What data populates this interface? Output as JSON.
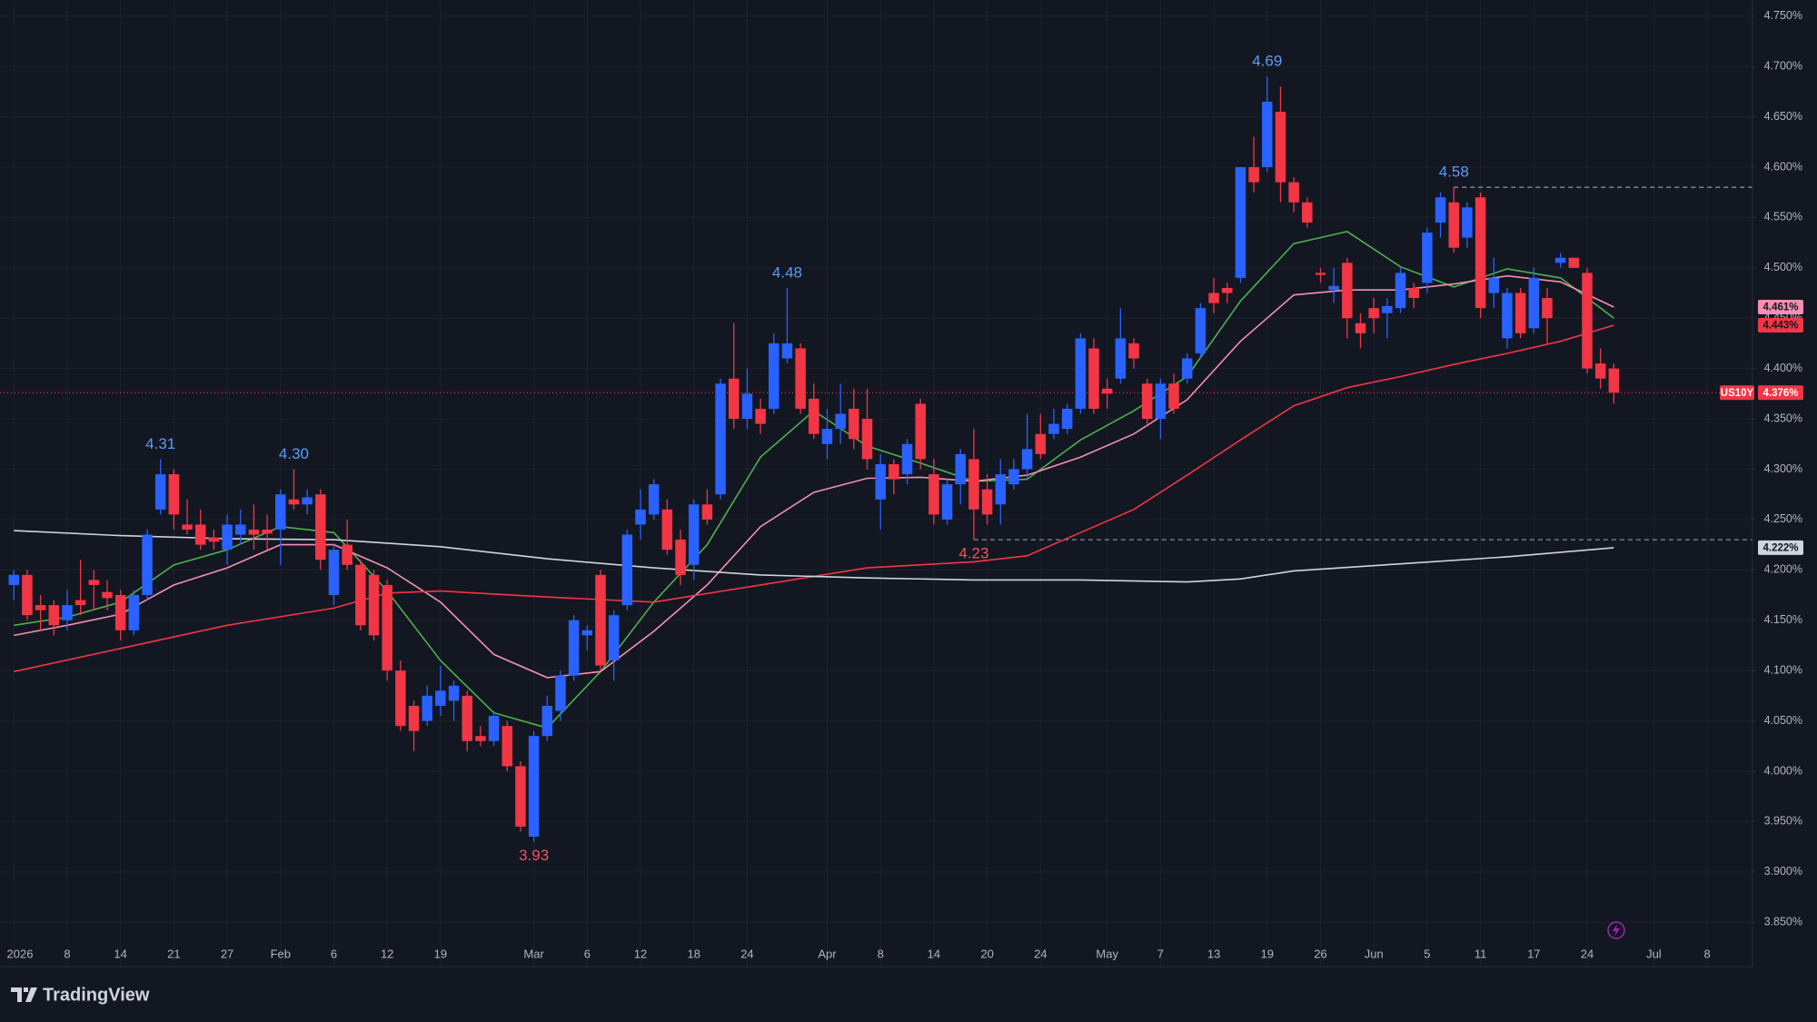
{
  "chart_data": {
    "type": "candlestick",
    "up_color": "#2962ff",
    "down_color": "#f23645",
    "grid": true,
    "xlim": [
      -1.04,
      130.4
    ],
    "ylim": [
      3.806,
      4.766
    ],
    "xticks": [
      {
        "value": 0,
        "label": "2026"
      },
      {
        "value": 4,
        "label": "8"
      },
      {
        "value": 8,
        "label": "14"
      },
      {
        "value": 12,
        "label": "21"
      },
      {
        "value": 16,
        "label": "27"
      },
      {
        "value": 20,
        "label": "Feb"
      },
      {
        "value": 24,
        "label": "6"
      },
      {
        "value": 28,
        "label": "12"
      },
      {
        "value": 32,
        "label": "19"
      },
      {
        "value": 39,
        "label": "Mar"
      },
      {
        "value": 43,
        "label": "6"
      },
      {
        "value": 47,
        "label": "12"
      },
      {
        "value": 51,
        "label": "18"
      },
      {
        "value": 55,
        "label": "24"
      },
      {
        "value": 61,
        "label": "Apr"
      },
      {
        "value": 65,
        "label": "8"
      },
      {
        "value": 69,
        "label": "14"
      },
      {
        "value": 73,
        "label": "20"
      },
      {
        "value": 77,
        "label": "24"
      },
      {
        "value": 82,
        "label": "May"
      },
      {
        "value": 86,
        "label": "7"
      },
      {
        "value": 90,
        "label": "13"
      },
      {
        "value": 94,
        "label": "19"
      },
      {
        "value": 98,
        "label": "26"
      },
      {
        "value": 102,
        "label": "Jun"
      },
      {
        "value": 106,
        "label": "5"
      },
      {
        "value": 110,
        "label": "11"
      },
      {
        "value": 114,
        "label": "17"
      },
      {
        "value": 118,
        "label": "24"
      },
      {
        "value": 123,
        "label": "Jul"
      },
      {
        "value": 127,
        "label": "8"
      }
    ],
    "yticks": [
      {
        "value": 3.85,
        "label": "3.850%"
      },
      {
        "value": 3.9,
        "label": "3.900%"
      },
      {
        "value": 3.95,
        "label": "3.950%"
      },
      {
        "value": 4.0,
        "label": "4.000%"
      },
      {
        "value": 4.05,
        "label": "4.050%"
      },
      {
        "value": 4.1,
        "label": "4.100%"
      },
      {
        "value": 4.15,
        "label": "4.150%"
      },
      {
        "value": 4.2,
        "label": "4.200%"
      },
      {
        "value": 4.25,
        "label": "4.250%"
      },
      {
        "value": 4.3,
        "label": "4.300%"
      },
      {
        "value": 4.35,
        "label": "4.350%"
      },
      {
        "value": 4.4,
        "label": "4.400%"
      },
      {
        "value": 4.45,
        "label": "4.450%"
      },
      {
        "value": 4.5,
        "label": "4.500%"
      },
      {
        "value": 4.55,
        "label": "4.550%"
      },
      {
        "value": 4.6,
        "label": "4.600%"
      },
      {
        "value": 4.65,
        "label": "4.650%"
      },
      {
        "value": 4.7,
        "label": "4.700%"
      },
      {
        "value": 4.75,
        "label": "4.750%"
      }
    ],
    "ohlc": [
      [
        4.185,
        4.2,
        4.17,
        4.195
      ],
      [
        4.195,
        4.2,
        4.15,
        4.155
      ],
      [
        4.165,
        4.175,
        4.14,
        4.16
      ],
      [
        4.165,
        4.17,
        4.135,
        4.145
      ],
      [
        4.15,
        4.18,
        4.14,
        4.165
      ],
      [
        4.17,
        4.21,
        4.155,
        4.165
      ],
      [
        4.19,
        4.2,
        4.16,
        4.185
      ],
      [
        4.178,
        4.19,
        4.16,
        4.172
      ],
      [
        4.175,
        4.18,
        4.13,
        4.14
      ],
      [
        4.14,
        4.18,
        4.135,
        4.175
      ],
      [
        4.175,
        4.24,
        4.17,
        4.235
      ],
      [
        4.26,
        4.31,
        4.255,
        4.295
      ],
      [
        4.295,
        4.3,
        4.24,
        4.255
      ],
      [
        4.245,
        4.27,
        4.235,
        4.24
      ],
      [
        4.245,
        4.26,
        4.22,
        4.225
      ],
      [
        4.232,
        4.24,
        4.22,
        4.228
      ],
      [
        4.22,
        4.255,
        4.205,
        4.245
      ],
      [
        4.235,
        4.26,
        4.225,
        4.245
      ],
      [
        4.24,
        4.265,
        4.22,
        4.235
      ],
      [
        4.24,
        4.255,
        4.22,
        4.236
      ],
      [
        4.24,
        4.28,
        4.205,
        4.275
      ],
      [
        4.27,
        4.3,
        4.26,
        4.265
      ],
      [
        4.265,
        4.28,
        4.255,
        4.272
      ],
      [
        4.275,
        4.28,
        4.2,
        4.21
      ],
      [
        4.175,
        4.225,
        4.165,
        4.22
      ],
      [
        4.225,
        4.25,
        4.2,
        4.205
      ],
      [
        4.205,
        4.21,
        4.14,
        4.145
      ],
      [
        4.195,
        4.2,
        4.13,
        4.135
      ],
      [
        4.185,
        4.19,
        4.09,
        4.1
      ],
      [
        4.1,
        4.11,
        4.04,
        4.045
      ],
      [
        4.065,
        4.07,
        4.02,
        4.04
      ],
      [
        4.05,
        4.085,
        4.045,
        4.075
      ],
      [
        4.065,
        4.105,
        4.055,
        4.08
      ],
      [
        4.07,
        4.09,
        4.05,
        4.085
      ],
      [
        4.075,
        4.08,
        4.02,
        4.03
      ],
      [
        4.035,
        4.045,
        4.025,
        4.03
      ],
      [
        4.03,
        4.06,
        4.025,
        4.055
      ],
      [
        4.045,
        4.05,
        4.0,
        4.005
      ],
      [
        4.005,
        4.01,
        3.94,
        3.945
      ],
      [
        3.935,
        4.04,
        3.93,
        4.035
      ],
      [
        4.035,
        4.075,
        4.03,
        4.065
      ],
      [
        4.06,
        4.1,
        4.05,
        4.095
      ],
      [
        4.095,
        4.155,
        4.09,
        4.15
      ],
      [
        4.135,
        4.145,
        4.12,
        4.14
      ],
      [
        4.195,
        4.2,
        4.1,
        4.105
      ],
      [
        4.11,
        4.16,
        4.09,
        4.155
      ],
      [
        4.165,
        4.24,
        4.16,
        4.235
      ],
      [
        4.245,
        4.28,
        4.23,
        4.26
      ],
      [
        4.255,
        4.29,
        4.25,
        4.285
      ],
      [
        4.26,
        4.27,
        4.215,
        4.22
      ],
      [
        4.23,
        4.24,
        4.185,
        4.195
      ],
      [
        4.205,
        4.27,
        4.19,
        4.265
      ],
      [
        4.265,
        4.28,
        4.245,
        4.25
      ],
      [
        4.275,
        4.39,
        4.27,
        4.385
      ],
      [
        4.39,
        4.445,
        4.34,
        4.35
      ],
      [
        4.35,
        4.4,
        4.34,
        4.375
      ],
      [
        4.36,
        4.37,
        4.335,
        4.345
      ],
      [
        4.36,
        4.435,
        4.355,
        4.425
      ],
      [
        4.41,
        4.48,
        4.405,
        4.425
      ],
      [
        4.42,
        4.425,
        4.355,
        4.36
      ],
      [
        4.37,
        4.385,
        4.33,
        4.335
      ],
      [
        4.325,
        4.36,
        4.31,
        4.34
      ],
      [
        4.34,
        4.385,
        4.325,
        4.355
      ],
      [
        4.36,
        4.38,
        4.32,
        4.33
      ],
      [
        4.35,
        4.38,
        4.3,
        4.31
      ],
      [
        4.27,
        4.315,
        4.24,
        4.305
      ],
      [
        4.305,
        4.31,
        4.275,
        4.29
      ],
      [
        4.295,
        4.33,
        4.285,
        4.325
      ],
      [
        4.365,
        4.37,
        4.3,
        4.31
      ],
      [
        4.295,
        4.31,
        4.245,
        4.255
      ],
      [
        4.25,
        4.29,
        4.245,
        4.285
      ],
      [
        4.285,
        4.32,
        4.265,
        4.315
      ],
      [
        4.31,
        4.34,
        4.23,
        4.26
      ],
      [
        4.28,
        4.295,
        4.245,
        4.255
      ],
      [
        4.265,
        4.31,
        4.245,
        4.295
      ],
      [
        4.285,
        4.31,
        4.28,
        4.3
      ],
      [
        4.3,
        4.355,
        4.29,
        4.32
      ],
      [
        4.335,
        4.355,
        4.31,
        4.315
      ],
      [
        4.335,
        4.36,
        4.33,
        4.345
      ],
      [
        4.34,
        4.365,
        4.335,
        4.36
      ],
      [
        4.36,
        4.435,
        4.355,
        4.43
      ],
      [
        4.42,
        4.43,
        4.355,
        4.36
      ],
      [
        4.38,
        4.39,
        4.36,
        4.375
      ],
      [
        4.39,
        4.46,
        4.385,
        4.43
      ],
      [
        4.425,
        4.43,
        4.4,
        4.41
      ],
      [
        4.385,
        4.39,
        4.345,
        4.35
      ],
      [
        4.35,
        4.39,
        4.33,
        4.385
      ],
      [
        4.385,
        4.395,
        4.355,
        4.36
      ],
      [
        4.39,
        4.415,
        4.385,
        4.41
      ],
      [
        4.415,
        4.465,
        4.41,
        4.46
      ],
      [
        4.475,
        4.49,
        4.455,
        4.465
      ],
      [
        4.48,
        4.485,
        4.465,
        4.475
      ],
      [
        4.49,
        4.6,
        4.485,
        4.6
      ],
      [
        4.6,
        4.63,
        4.575,
        4.585
      ],
      [
        4.6,
        4.69,
        4.595,
        4.665
      ],
      [
        4.655,
        4.68,
        4.565,
        4.585
      ],
      [
        4.585,
        4.59,
        4.555,
        4.565
      ],
      [
        4.565,
        4.57,
        4.54,
        4.545
      ],
      [
        4.495,
        4.5,
        4.485,
        4.493
      ],
      [
        4.478,
        4.5,
        4.465,
        4.482
      ],
      [
        4.505,
        4.51,
        4.43,
        4.45
      ],
      [
        4.445,
        4.455,
        4.42,
        4.435
      ],
      [
        4.46,
        4.47,
        4.435,
        4.45
      ],
      [
        4.455,
        4.47,
        4.43,
        4.462
      ],
      [
        4.46,
        4.5,
        4.455,
        4.495
      ],
      [
        4.48,
        4.485,
        4.46,
        4.47
      ],
      [
        4.485,
        4.54,
        4.475,
        4.535
      ],
      [
        4.545,
        4.575,
        4.53,
        4.57
      ],
      [
        4.565,
        4.58,
        4.515,
        4.52
      ],
      [
        4.53,
        4.565,
        4.52,
        4.56
      ],
      [
        4.57,
        4.575,
        4.45,
        4.46
      ],
      [
        4.475,
        4.51,
        4.46,
        4.49
      ],
      [
        4.43,
        4.48,
        4.42,
        4.475
      ],
      [
        4.475,
        4.48,
        4.43,
        4.435
      ],
      [
        4.44,
        4.5,
        4.435,
        4.49
      ],
      [
        4.47,
        4.48,
        4.425,
        4.45
      ],
      [
        4.505,
        4.515,
        4.5,
        4.51
      ],
      [
        4.51,
        4.51,
        4.5,
        4.5
      ],
      [
        4.495,
        4.5,
        4.395,
        4.4
      ],
      [
        4.405,
        4.42,
        4.38,
        4.39
      ],
      [
        4.4,
        4.405,
        4.365,
        4.376
      ]
    ],
    "lines": [
      {
        "color": "#4caf50",
        "x": [
          0,
          4,
          8,
          12,
          16,
          20,
          24,
          28,
          32,
          36,
          40,
          44,
          48,
          52,
          56,
          60,
          64,
          68,
          72,
          76,
          80,
          84,
          88,
          92,
          96,
          100,
          104,
          108,
          112,
          116,
          120
        ],
        "values": [
          4.145,
          4.153,
          4.168,
          4.205,
          4.22,
          4.243,
          4.237,
          4.179,
          4.11,
          4.058,
          4.043,
          4.099,
          4.168,
          4.225,
          4.312,
          4.358,
          4.323,
          4.306,
          4.288,
          4.29,
          4.329,
          4.358,
          4.392,
          4.467,
          4.524,
          4.536,
          4.501,
          4.481,
          4.499,
          4.49,
          4.45
        ]
      },
      {
        "color": "#f48fb1",
        "x": [
          0,
          4,
          8,
          12,
          16,
          20,
          24,
          28,
          32,
          36,
          40,
          44,
          48,
          52,
          56,
          60,
          64,
          68,
          72,
          76,
          80,
          84,
          88,
          92,
          96,
          100,
          104,
          108,
          112,
          116,
          120
        ],
        "values": [
          4.135,
          4.145,
          4.156,
          4.185,
          4.202,
          4.225,
          4.225,
          4.202,
          4.168,
          4.116,
          4.093,
          4.099,
          4.139,
          4.185,
          4.243,
          4.277,
          4.291,
          4.292,
          4.288,
          4.294,
          4.312,
          4.335,
          4.369,
          4.427,
          4.473,
          4.478,
          4.478,
          4.484,
          4.492,
          4.486,
          4.461
        ]
      },
      {
        "color": "#f23645",
        "x": [
          0,
          8,
          16,
          24,
          28,
          32,
          40,
          48,
          56,
          64,
          72,
          76,
          80,
          84,
          88,
          92,
          96,
          100,
          104,
          108,
          112,
          116,
          120
        ],
        "values": [
          4.099,
          4.122,
          4.145,
          4.162,
          4.177,
          4.179,
          4.173,
          4.168,
          4.185,
          4.202,
          4.208,
          4.214,
          4.237,
          4.26,
          4.294,
          4.329,
          4.363,
          4.381,
          4.392,
          4.404,
          4.415,
          4.427,
          4.443
        ]
      },
      {
        "color": "#d1d4dc",
        "x": [
          0,
          8,
          16,
          24,
          32,
          40,
          48,
          56,
          64,
          72,
          80,
          88,
          92,
          96,
          104,
          112,
          120
        ],
        "values": [
          4.239,
          4.234,
          4.231,
          4.23,
          4.223,
          4.211,
          4.202,
          4.195,
          4.192,
          4.19,
          4.19,
          4.188,
          4.191,
          4.199,
          4.206,
          4.213,
          4.222
        ]
      }
    ],
    "annotations": [
      {
        "text": "4.31",
        "x": 11,
        "y": 4.31,
        "color": "#5b9cf6"
      },
      {
        "text": "4.30",
        "x": 21,
        "y": 4.3,
        "color": "#5b9cf6"
      },
      {
        "text": "3.93",
        "x": 39,
        "y": 3.93,
        "color": "#f7525f"
      },
      {
        "text": "4.48",
        "x": 58,
        "y": 4.48,
        "color": "#5b9cf6"
      },
      {
        "text": "4.23",
        "x": 72,
        "y": 4.23,
        "color": "#f7525f"
      },
      {
        "text": "4.69",
        "x": 94,
        "y": 4.69,
        "color": "#5b9cf6"
      },
      {
        "text": "4.58",
        "x": 108,
        "y": 4.58,
        "color": "#5b9cf6"
      }
    ],
    "hlines": [
      {
        "y": 4.58,
        "x": 108,
        "color": "#9598a1"
      },
      {
        "y": 4.23,
        "x": 72,
        "color": "#9598a1"
      }
    ],
    "price_labels": [
      {
        "value": 4.461,
        "label": "4.461%",
        "color": "#f48fb1"
      },
      {
        "value": 4.443,
        "label": "4.443%",
        "color": "#f23645"
      },
      {
        "value": 4.222,
        "label": "4.222%",
        "color": "#d1d4dc"
      }
    ],
    "last_price": {
      "symbol": "US10Y",
      "value": 4.376,
      "label": "4.376%",
      "color": "#f23645"
    }
  },
  "footer": {
    "brand": "TradingView"
  }
}
